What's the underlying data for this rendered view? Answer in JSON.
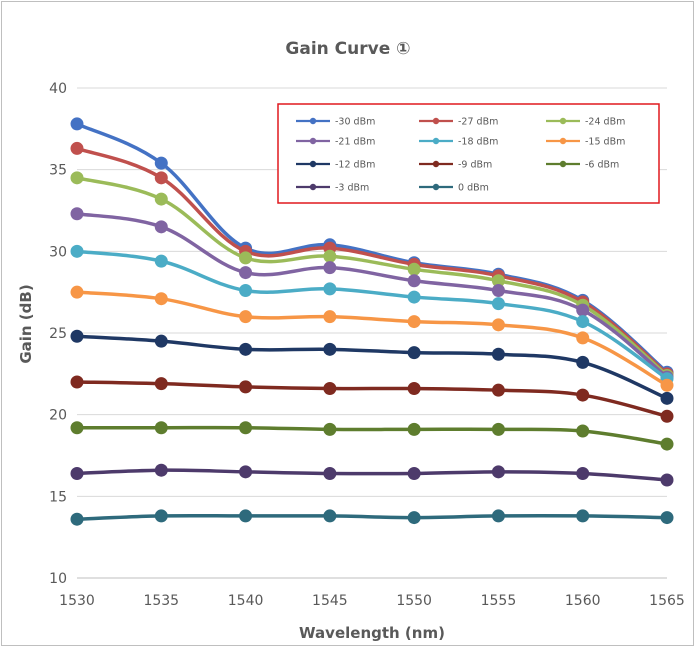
{
  "chart_data": {
    "type": "line",
    "title": "Gain Curve ①",
    "xlabel": "Wavelength (nm)",
    "ylabel": "Gain (dB)",
    "xlim": [
      1530,
      1565
    ],
    "ylim": [
      10,
      40
    ],
    "x_ticks": [
      1530,
      1535,
      1540,
      1545,
      1550,
      1555,
      1560,
      1565
    ],
    "y_ticks": [
      10,
      15,
      20,
      25,
      30,
      35,
      40
    ],
    "grid": "horizontal",
    "legend_position": "top-right",
    "x": [
      1530,
      1535,
      1540,
      1545,
      1550,
      1555,
      1560,
      1565
    ],
    "series": [
      {
        "name": "-30 dBm",
        "color": "#4472C4",
        "values": [
          37.8,
          35.4,
          30.2,
          30.4,
          29.3,
          28.6,
          27.0,
          22.6
        ]
      },
      {
        "name": "-27 dBm",
        "color": "#C0504D",
        "values": [
          36.3,
          34.5,
          30.0,
          30.2,
          29.2,
          28.5,
          26.9,
          22.5
        ]
      },
      {
        "name": "-24 dBm",
        "color": "#9BBB59",
        "values": [
          34.5,
          33.2,
          29.6,
          29.7,
          28.9,
          28.2,
          26.7,
          22.4
        ]
      },
      {
        "name": "-21 dBm",
        "color": "#8064A2",
        "values": [
          32.3,
          31.5,
          28.7,
          29.0,
          28.2,
          27.6,
          26.4,
          22.3
        ]
      },
      {
        "name": "-18 dBm",
        "color": "#4BACC6",
        "values": [
          30.0,
          29.4,
          27.6,
          27.7,
          27.2,
          26.8,
          25.7,
          22.2
        ]
      },
      {
        "name": "-15 dBm",
        "color": "#F79646",
        "values": [
          27.5,
          27.1,
          26.0,
          26.0,
          25.7,
          25.5,
          24.7,
          21.8
        ]
      },
      {
        "name": "-12 dBm",
        "color": "#1F3864",
        "values": [
          24.8,
          24.5,
          24.0,
          24.0,
          23.8,
          23.7,
          23.2,
          21.0
        ]
      },
      {
        "name": "-9 dBm",
        "color": "#7F2A20",
        "values": [
          22.0,
          21.9,
          21.7,
          21.6,
          21.6,
          21.5,
          21.2,
          19.9
        ]
      },
      {
        "name": "-6 dBm",
        "color": "#5E7D2E",
        "values": [
          19.2,
          19.2,
          19.2,
          19.1,
          19.1,
          19.1,
          19.0,
          18.2
        ]
      },
      {
        "name": "-3 dBm",
        "color": "#4D3A6B",
        "values": [
          16.4,
          16.6,
          16.5,
          16.4,
          16.4,
          16.5,
          16.4,
          16.0
        ]
      },
      {
        "name": "0 dBm",
        "color": "#2E6A7C",
        "values": [
          13.6,
          13.8,
          13.8,
          13.8,
          13.7,
          13.8,
          13.8,
          13.7
        ]
      }
    ]
  }
}
